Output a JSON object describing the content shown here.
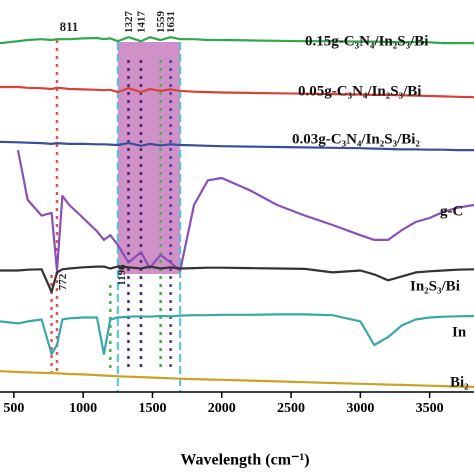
{
  "chart_data": {
    "type": "line",
    "x_label": "Wavelength (cm⁻¹)",
    "xlim": [
      400,
      3820
    ],
    "ylim": [
      0,
      100
    ],
    "xticks": [
      500,
      1000,
      1500,
      2000,
      2500,
      3000,
      3500
    ],
    "x": [
      400,
      530,
      600,
      700,
      772,
      811,
      850,
      900,
      1000,
      1100,
      1150,
      1196,
      1250,
      1327,
      1417,
      1480,
      1559,
      1631,
      1700,
      1800,
      1900,
      2000,
      2200,
      2400,
      2600,
      2800,
      3000,
      3100,
      3200,
      3300,
      3400,
      3500,
      3600,
      3700,
      3820
    ],
    "series": [
      {
        "name": "0.15g-C₃N₄/In₂S₃/Bi",
        "color": "#2fa84f",
        "values": [
          89,
          89.5,
          89.8,
          90,
          89.8,
          90,
          90,
          90,
          90.2,
          90.3,
          90,
          90.2,
          89.5,
          90.5,
          89.5,
          90.5,
          89.8,
          90.5,
          90,
          90,
          89.8,
          89.8,
          89.7,
          89.6,
          89.5,
          89.5,
          89.4,
          89.4,
          89.3,
          89.2,
          89.3,
          89.2,
          89,
          89,
          89
        ]
      },
      {
        "name": "0.05g-C₃N₄/In₂S₃/Bi",
        "color": "#d9413a",
        "values": [
          77.8,
          77.8,
          77.6,
          77.5,
          77.3,
          77.6,
          77.5,
          77.3,
          77.2,
          77.1,
          77,
          77.1,
          76.5,
          77.5,
          76.5,
          77.3,
          76.8,
          77.2,
          76.8,
          76.6,
          76.5,
          76.4,
          76.3,
          76.2,
          76.1,
          76,
          75.9,
          75.8,
          75.8,
          75.7,
          75.6,
          75.5,
          75.4,
          75.3,
          75.2
        ]
      },
      {
        "name": "0.03g-C₃N₄/In₂S₃/Bi₂",
        "color": "#3a4f9a",
        "values": [
          63.8,
          63.7,
          63.6,
          63.5,
          63.3,
          63.5,
          63.4,
          63.3,
          63.3,
          63.2,
          63.2,
          63.1,
          63,
          63.5,
          62.8,
          63.3,
          62.9,
          63.2,
          63,
          62.9,
          62.8,
          62.7,
          62.6,
          62.5,
          62.4,
          62.3,
          62.2,
          62.1,
          62,
          61.9,
          61.9,
          61.8,
          61.8,
          61.7,
          61.7
        ]
      },
      {
        "name": "g-C",
        "color": "#8a4fb8",
        "values": [
          null,
          61.7,
          49,
          45,
          45.7,
          31,
          50,
          47.7,
          44.4,
          41,
          38.8,
          40,
          37.5,
          33,
          35.7,
          31.6,
          35,
          33,
          31,
          47.7,
          54,
          54.6,
          51.5,
          47.7,
          45,
          42.6,
          40,
          38.8,
          38.8,
          41.3,
          43.4,
          44.4,
          46,
          47,
          47.7
        ]
      },
      {
        "name": "In₂S₃/Bi",
        "color": "#333333",
        "values": [
          31,
          31,
          31.2,
          31.3,
          25.5,
          30.5,
          31.3,
          31.5,
          31.8,
          32,
          32,
          31.5,
          32,
          31.8,
          31.5,
          32,
          31.5,
          31.8,
          31.5,
          31.6,
          31.7,
          31.7,
          31.6,
          31.5,
          31.4,
          30.5,
          31,
          30,
          28.5,
          29.5,
          30.5,
          30.8,
          31,
          31.2,
          31.3
        ]
      },
      {
        "name": "In",
        "color": "#3aa8a8",
        "values": [
          18,
          17.5,
          18,
          18.5,
          9.7,
          12,
          18.5,
          18.8,
          19,
          19,
          9.7,
          18.5,
          19,
          19.2,
          19.3,
          19.2,
          19.4,
          19.3,
          19.5,
          19.6,
          19.6,
          19.7,
          19.7,
          19.8,
          19.8,
          19.6,
          18,
          12,
          14,
          17,
          18.5,
          19,
          19.2,
          19.3,
          19.4
        ]
      },
      {
        "name": "Bi₂",
        "color": "#c9a227",
        "values": [
          5.3,
          5.1,
          5,
          4.9,
          4.8,
          4.8,
          4.7,
          4.6,
          4.5,
          4.3,
          4.2,
          4.1,
          4,
          3.9,
          3.8,
          3.7,
          3.6,
          3.5,
          3.4,
          3.3,
          3.2,
          3.1,
          2.9,
          2.7,
          2.5,
          2.3,
          2.1,
          2,
          1.9,
          1.8,
          1.7,
          1.6,
          1.5,
          1.4,
          1.3
        ]
      }
    ],
    "band": {
      "from": 1250,
      "to": 1700,
      "color": "#c06bb5"
    },
    "annotations": [
      {
        "x": 811,
        "label": "811",
        "color": "#e0554f"
      },
      {
        "x": 772,
        "label": "772",
        "color": "#e0554f"
      },
      {
        "x": 1196,
        "label": "1196",
        "color": "#4caf50"
      },
      {
        "x": 1327,
        "label": "1327",
        "color": "#4b2a6e"
      },
      {
        "x": 1417,
        "label": "1417",
        "color": "#4b2a6e"
      },
      {
        "x": 1559,
        "label": "1559",
        "color": "#4caf50"
      },
      {
        "x": 1631,
        "label": "1631",
        "color": "#5a3d9a"
      }
    ]
  }
}
